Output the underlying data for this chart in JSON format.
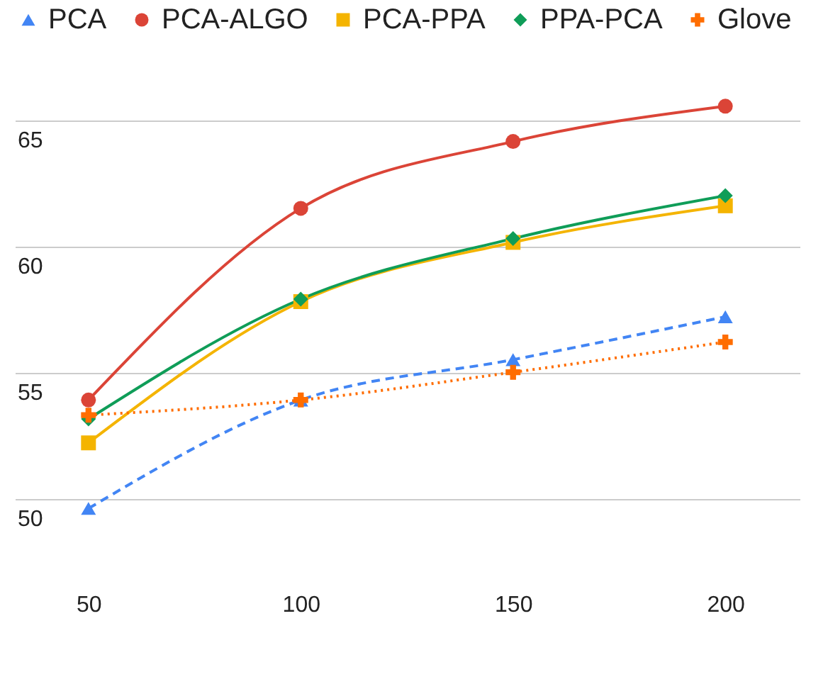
{
  "chart_data": {
    "type": "line",
    "categories": [
      "50",
      "100",
      "150",
      "200"
    ],
    "series": [
      {
        "name": "PCA",
        "color": "#4285f4",
        "marker": "triangle",
        "line_style": "dashed",
        "values": [
          49.6,
          53.9,
          55.5,
          57.2
        ]
      },
      {
        "name": "PCA-ALGO",
        "color": "#db4437",
        "marker": "circle",
        "line_style": "solid",
        "values": [
          53.9,
          61.5,
          64.15,
          65.55
        ]
      },
      {
        "name": "PCA-PPA",
        "color": "#f4b400",
        "marker": "square",
        "line_style": "solid",
        "values": [
          52.2,
          57.8,
          60.15,
          61.6
        ]
      },
      {
        "name": "PPA-PCA",
        "color": "#0f9d58",
        "marker": "diamond",
        "line_style": "solid",
        "values": [
          53.15,
          57.9,
          60.3,
          62.0
        ]
      },
      {
        "name": "Glove",
        "color": "#ff6d00",
        "marker": "cross",
        "line_style": "dotted",
        "values": [
          53.3,
          53.9,
          55.0,
          56.2
        ]
      }
    ],
    "ylim": [
      47.5,
      66.5
    ],
    "yticks": [
      50,
      55,
      60,
      65
    ],
    "grid": "y",
    "legend": "top"
  }
}
